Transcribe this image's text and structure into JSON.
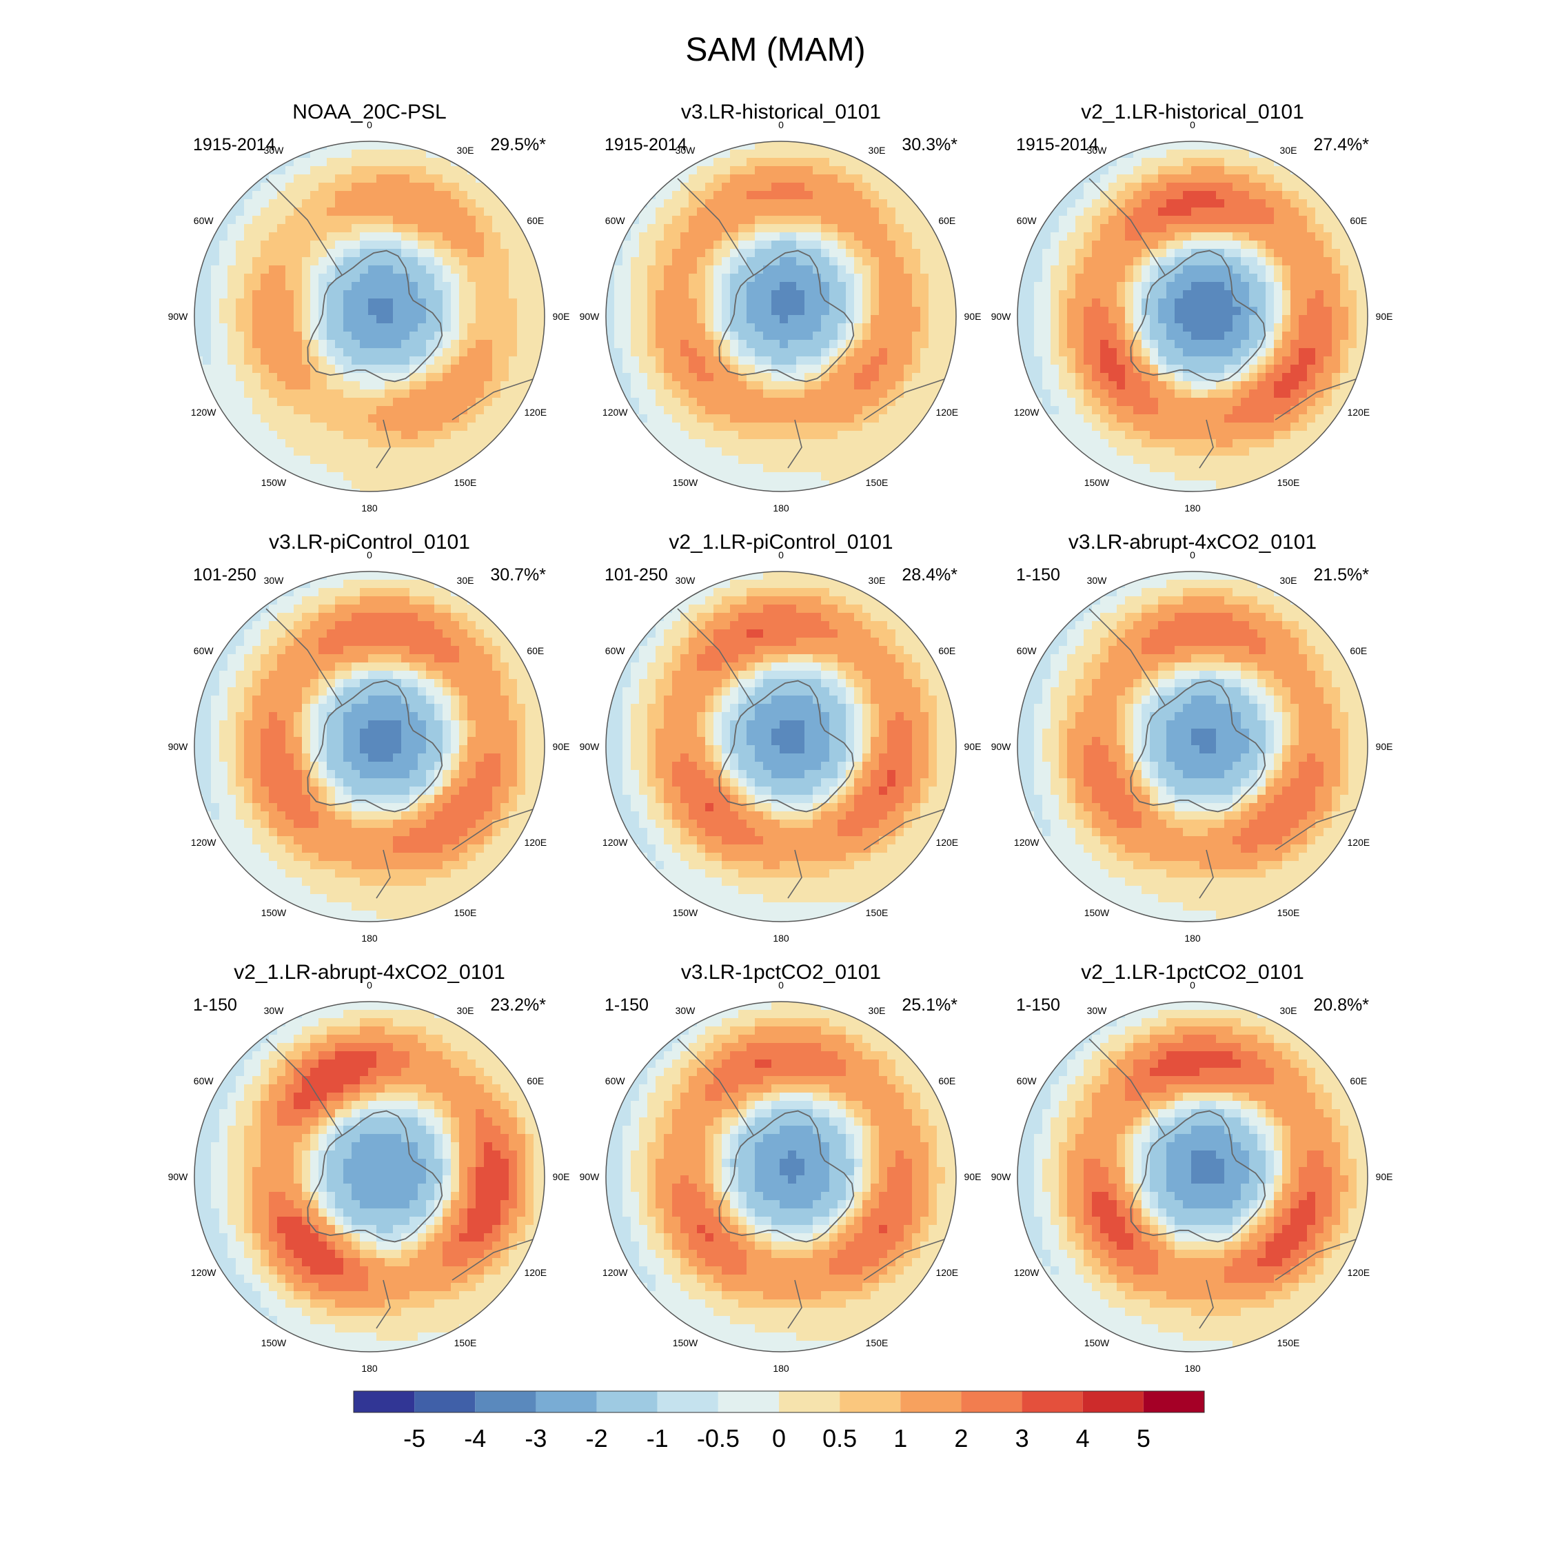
{
  "chart_data": {
    "type": "polar-contour-map-panels",
    "title": "SAM (MAM)",
    "projection": "south-polar-stereographic",
    "lon_labels": [
      "0",
      "30E",
      "60E",
      "90E",
      "120E",
      "150E",
      "180",
      "150W",
      "120W",
      "90W",
      "60W",
      "30W"
    ],
    "colorbar": {
      "tick_labels": [
        "-5",
        "-4",
        "-3",
        "-2",
        "-1",
        "-0.5",
        "0",
        "0.5",
        "1",
        "2",
        "3",
        "4",
        "5"
      ],
      "levels": [
        -5,
        -4,
        -3,
        -2,
        -1,
        -0.5,
        0,
        0.5,
        1,
        2,
        3,
        4,
        5
      ],
      "colors": [
        "#313695",
        "#4060a8",
        "#5a89bd",
        "#79acd4",
        "#9ecae2",
        "#c5e2ee",
        "#e2f0ef",
        "#f6e3ad",
        "#fac77e",
        "#f7a15e",
        "#f27d4f",
        "#e4503c",
        "#cd2b2b",
        "#a50026"
      ]
    },
    "panels": [
      {
        "title": "NOAA_20C-PSL",
        "period": "1915-2014",
        "variance": "29.5%*",
        "center_min": -3.2,
        "ring_max": 1.2,
        "wave_amp": 0.45,
        "wave_phase": 200,
        "polar_shift_lon": 240
      },
      {
        "title": "v3.LR-historical_0101",
        "period": "1915-2014",
        "variance": "30.3%*",
        "center_min": -3.3,
        "ring_max": 1.6,
        "wave_amp": 0.3,
        "wave_phase": 180,
        "polar_shift_lon": 200
      },
      {
        "title": "v2_1.LR-historical_0101",
        "period": "1915-2014",
        "variance": "27.4%*",
        "center_min": -3.8,
        "ring_max": 2.4,
        "wave_amp": 0.35,
        "wave_phase": 180,
        "polar_shift_lon": 250
      },
      {
        "title": "v3.LR-piControl_0101",
        "period": "101-250",
        "variance": "30.7%*",
        "center_min": -3.4,
        "ring_max": 2.2,
        "wave_amp": 0.3,
        "wave_phase": 190,
        "polar_shift_lon": 240
      },
      {
        "title": "v2_1.LR-piControl_0101",
        "period": "101-250",
        "variance": "28.4%*",
        "center_min": -3.3,
        "ring_max": 2.2,
        "wave_amp": 0.35,
        "wave_phase": 170,
        "polar_shift_lon": 220
      },
      {
        "title": "v3.LR-abrupt-4xCO2_0101",
        "period": "1-150",
        "variance": "21.5%*",
        "center_min": -3.2,
        "ring_max": 2.0,
        "wave_amp": 0.4,
        "wave_phase": 185,
        "polar_shift_lon": 240
      },
      {
        "title": "v2_1.LR-abrupt-4xCO2_0101",
        "period": "1-150",
        "variance": "23.2%*",
        "center_min": -3.1,
        "ring_max": 2.6,
        "wave_amp": 0.5,
        "wave_phase": 160,
        "polar_shift_lon": 250
      },
      {
        "title": "v3.LR-1pctCO2_0101",
        "period": "1-150",
        "variance": "25.1%*",
        "center_min": -3.2,
        "ring_max": 2.2,
        "wave_amp": 0.35,
        "wave_phase": 175,
        "polar_shift_lon": 230
      },
      {
        "title": "v2_1.LR-1pctCO2_0101",
        "period": "1-150",
        "variance": "20.8%*",
        "center_min": -3.3,
        "ring_max": 2.5,
        "wave_amp": 0.4,
        "wave_phase": 180,
        "polar_shift_lon": 240
      }
    ]
  }
}
